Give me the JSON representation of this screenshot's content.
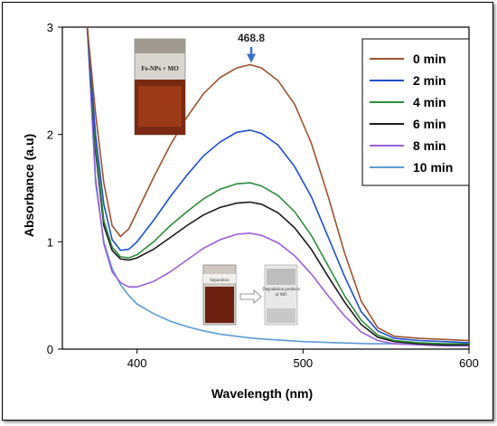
{
  "chart_data": {
    "type": "line",
    "xlabel": "Wavelength (nm)",
    "ylabel": "Absorbance (a.u)",
    "xlim": [
      355,
      600
    ],
    "ylim": [
      0,
      3
    ],
    "x_ticks": [
      400,
      500,
      600
    ],
    "y_ticks": [
      0,
      1,
      2,
      3
    ],
    "grid": false,
    "legend_position": "top-right",
    "annotation": {
      "text": "468.8",
      "x": 468.8,
      "y": 2.65
    },
    "series": [
      {
        "name": "0 min",
        "color": "#a0522d",
        "points": [
          [
            370,
            3.0
          ],
          [
            375,
            2.2
          ],
          [
            380,
            1.55
          ],
          [
            385,
            1.15
          ],
          [
            390,
            1.05
          ],
          [
            395,
            1.12
          ],
          [
            400,
            1.28
          ],
          [
            410,
            1.6
          ],
          [
            420,
            1.9
          ],
          [
            430,
            2.16
          ],
          [
            440,
            2.38
          ],
          [
            450,
            2.53
          ],
          [
            460,
            2.62
          ],
          [
            468,
            2.65
          ],
          [
            475,
            2.62
          ],
          [
            485,
            2.5
          ],
          [
            495,
            2.28
          ],
          [
            505,
            1.92
          ],
          [
            515,
            1.43
          ],
          [
            525,
            0.9
          ],
          [
            535,
            0.45
          ],
          [
            545,
            0.2
          ],
          [
            555,
            0.12
          ],
          [
            570,
            0.1
          ],
          [
            585,
            0.09
          ],
          [
            600,
            0.08
          ]
        ]
      },
      {
        "name": "2 min",
        "color": "#1f4fd1",
        "points": [
          [
            370,
            3.0
          ],
          [
            375,
            2.0
          ],
          [
            380,
            1.35
          ],
          [
            385,
            1.02
          ],
          [
            390,
            0.92
          ],
          [
            395,
            0.93
          ],
          [
            400,
            1.0
          ],
          [
            410,
            1.2
          ],
          [
            420,
            1.42
          ],
          [
            430,
            1.62
          ],
          [
            440,
            1.8
          ],
          [
            450,
            1.93
          ],
          [
            460,
            2.02
          ],
          [
            468,
            2.04
          ],
          [
            475,
            2.01
          ],
          [
            485,
            1.9
          ],
          [
            495,
            1.7
          ],
          [
            505,
            1.42
          ],
          [
            515,
            1.05
          ],
          [
            525,
            0.68
          ],
          [
            535,
            0.35
          ],
          [
            545,
            0.17
          ],
          [
            555,
            0.1
          ],
          [
            570,
            0.08
          ],
          [
            585,
            0.07
          ],
          [
            600,
            0.06
          ]
        ]
      },
      {
        "name": "4 min",
        "color": "#2e8b3a",
        "points": [
          [
            370,
            3.0
          ],
          [
            375,
            1.9
          ],
          [
            380,
            1.2
          ],
          [
            385,
            0.95
          ],
          [
            390,
            0.86
          ],
          [
            395,
            0.85
          ],
          [
            400,
            0.88
          ],
          [
            410,
            1.0
          ],
          [
            420,
            1.15
          ],
          [
            430,
            1.28
          ],
          [
            440,
            1.4
          ],
          [
            450,
            1.49
          ],
          [
            460,
            1.54
          ],
          [
            468,
            1.55
          ],
          [
            475,
            1.52
          ],
          [
            485,
            1.43
          ],
          [
            495,
            1.28
          ],
          [
            505,
            1.06
          ],
          [
            515,
            0.78
          ],
          [
            525,
            0.5
          ],
          [
            535,
            0.27
          ],
          [
            545,
            0.13
          ],
          [
            555,
            0.08
          ],
          [
            570,
            0.06
          ],
          [
            585,
            0.05
          ],
          [
            600,
            0.05
          ]
        ]
      },
      {
        "name": "6 min",
        "color": "#1a1a1a",
        "points": [
          [
            370,
            3.0
          ],
          [
            375,
            1.85
          ],
          [
            380,
            1.15
          ],
          [
            385,
            0.92
          ],
          [
            390,
            0.84
          ],
          [
            395,
            0.83
          ],
          [
            400,
            0.85
          ],
          [
            410,
            0.93
          ],
          [
            420,
            1.04
          ],
          [
            430,
            1.15
          ],
          [
            440,
            1.25
          ],
          [
            450,
            1.32
          ],
          [
            460,
            1.36
          ],
          [
            468,
            1.37
          ],
          [
            475,
            1.35
          ],
          [
            485,
            1.27
          ],
          [
            495,
            1.13
          ],
          [
            505,
            0.93
          ],
          [
            515,
            0.68
          ],
          [
            525,
            0.44
          ],
          [
            535,
            0.23
          ],
          [
            545,
            0.11
          ],
          [
            555,
            0.07
          ],
          [
            570,
            0.05
          ],
          [
            585,
            0.04
          ],
          [
            600,
            0.04
          ]
        ]
      },
      {
        "name": "8 min",
        "color": "#9a5fd8",
        "points": [
          [
            370,
            3.0
          ],
          [
            375,
            1.6
          ],
          [
            380,
            0.98
          ],
          [
            385,
            0.72
          ],
          [
            390,
            0.62
          ],
          [
            395,
            0.58
          ],
          [
            400,
            0.58
          ],
          [
            410,
            0.63
          ],
          [
            420,
            0.72
          ],
          [
            430,
            0.83
          ],
          [
            440,
            0.94
          ],
          [
            450,
            1.02
          ],
          [
            460,
            1.07
          ],
          [
            468,
            1.08
          ],
          [
            475,
            1.06
          ],
          [
            485,
            0.99
          ],
          [
            495,
            0.87
          ],
          [
            505,
            0.7
          ],
          [
            515,
            0.5
          ],
          [
            525,
            0.31
          ],
          [
            535,
            0.16
          ],
          [
            545,
            0.08
          ],
          [
            555,
            0.05
          ],
          [
            570,
            0.04
          ],
          [
            585,
            0.03
          ],
          [
            600,
            0.03
          ]
        ]
      },
      {
        "name": "10 min",
        "color": "#5b9bd5",
        "points": [
          [
            370,
            3.0
          ],
          [
            375,
            1.55
          ],
          [
            380,
            1.0
          ],
          [
            385,
            0.75
          ],
          [
            390,
            0.6
          ],
          [
            395,
            0.5
          ],
          [
            400,
            0.42
          ],
          [
            410,
            0.33
          ],
          [
            420,
            0.26
          ],
          [
            430,
            0.21
          ],
          [
            440,
            0.17
          ],
          [
            450,
            0.14
          ],
          [
            460,
            0.12
          ],
          [
            470,
            0.1
          ],
          [
            480,
            0.09
          ],
          [
            500,
            0.07
          ],
          [
            520,
            0.06
          ],
          [
            540,
            0.05
          ],
          [
            560,
            0.05
          ],
          [
            580,
            0.04
          ],
          [
            600,
            0.04
          ]
        ]
      }
    ]
  },
  "insets": {
    "vial_label": "Fe-NPs + MO",
    "separation_label": "Separation",
    "products_label": "Degradation products of MO"
  }
}
